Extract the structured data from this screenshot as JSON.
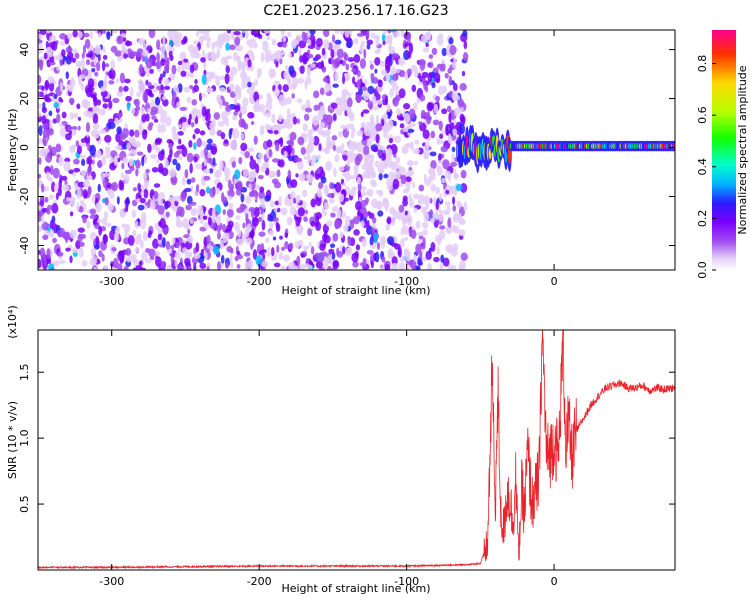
{
  "figure_title": "C2E1.2023.256.17.16.G23",
  "chart_data": [
    {
      "type": "heatmap",
      "title": "C2E1.2023.256.17.16.G23",
      "xlabel": "Height of straight line (km)",
      "ylabel": "Frequency (Hz)",
      "xlim": [
        -350,
        82
      ],
      "ylim": [
        -50,
        48
      ],
      "xticks": [
        -300,
        -200,
        -100,
        0
      ],
      "yticks": [
        -40,
        -20,
        0,
        20,
        40
      ],
      "x_tick_labels": [
        "-300",
        "-200",
        "-100",
        "0"
      ],
      "y_tick_labels": [
        "-40",
        "-20",
        "0",
        "20",
        "40"
      ],
      "colormap": [
        "#ffffff",
        "#e3cdf7",
        "#a04bf0",
        "#7a00ff",
        "#2a1dff",
        "#00b7ff",
        "#00ffc8",
        "#13ff00",
        "#b8ff00",
        "#ffd800",
        "#ff3000",
        "#ff0090"
      ],
      "colorbar": {
        "label": "Normalized spectral amplitude",
        "range": [
          0,
          0.93
        ],
        "ticks": [
          0.0,
          0.2,
          0.4,
          0.6,
          0.8
        ],
        "tick_labels": [
          "0.0",
          "0.2",
          "0.4",
          "0.6",
          "0.8"
        ]
      },
      "regions": [
        {
          "description": "broadband diffuse noise",
          "x": [
            -350,
            -60
          ],
          "y": [
            -50,
            48
          ],
          "amplitude": 0.1
        },
        {
          "description": "signal band",
          "x": [
            -65,
            82
          ],
          "y": [
            -3,
            3
          ],
          "amplitude": 0.8
        }
      ]
    },
    {
      "type": "line",
      "xlabel": "Height of straight line (km)",
      "ylabel": "SNR (10 * v/v)",
      "y_scale_note": "(x10⁴)",
      "xlim": [
        -350,
        82
      ],
      "ylim": [
        0,
        1.82
      ],
      "xticks": [
        -300,
        -200,
        -100,
        0
      ],
      "yticks": [
        0.5,
        1.0,
        1.5
      ],
      "x_tick_labels": [
        "-300",
        "-200",
        "-100",
        "0"
      ],
      "y_tick_labels": [
        "0.5",
        "1.0",
        "1.5"
      ],
      "series": [
        {
          "color": "#e8232a",
          "x": [
            -350,
            -300,
            -250,
            -200,
            -150,
            -100,
            -60,
            -50,
            -45,
            -42,
            -40,
            -38,
            -36,
            -34,
            -32,
            -30,
            -28,
            -26,
            -24,
            -22,
            -20,
            -18,
            -15,
            -12,
            -10,
            -8,
            -5,
            -2,
            0,
            3,
            6,
            8,
            10,
            12,
            15,
            20,
            25,
            30,
            35,
            40,
            45,
            50,
            55,
            60,
            65,
            70,
            75,
            82
          ],
          "values": [
            0.02,
            0.02,
            0.025,
            0.03,
            0.03,
            0.03,
            0.04,
            0.05,
            0.2,
            1.53,
            0.5,
            1.3,
            0.4,
            0.3,
            0.6,
            0.55,
            0.35,
            0.7,
            0.1,
            0.6,
            0.45,
            0.9,
            0.5,
            0.6,
            0.75,
            1.8,
            0.85,
            0.9,
            1.0,
            0.85,
            1.75,
            0.95,
            1.1,
            0.85,
            1.05,
            1.15,
            1.25,
            1.32,
            1.38,
            1.4,
            1.42,
            1.38,
            1.38,
            1.4,
            1.36,
            1.38,
            1.37,
            1.38
          ]
        }
      ]
    }
  ]
}
